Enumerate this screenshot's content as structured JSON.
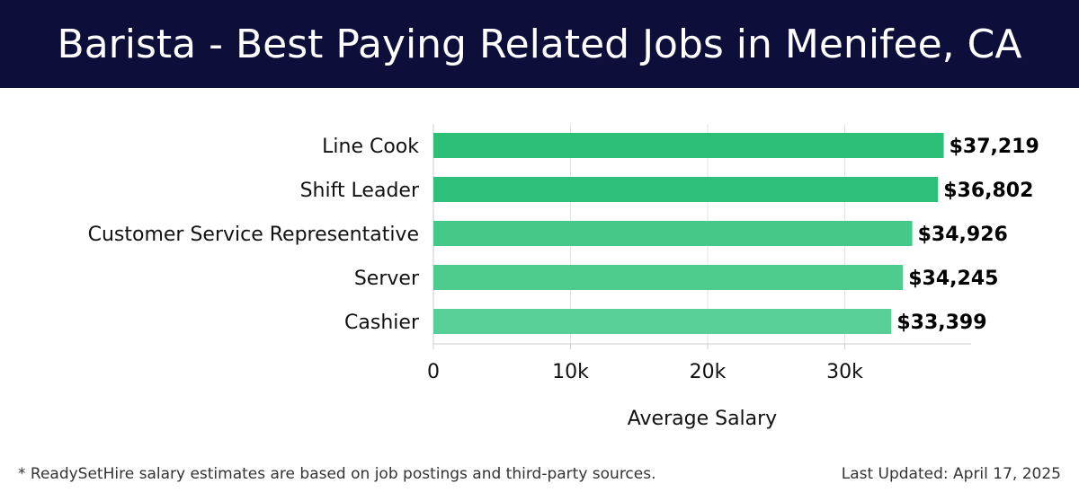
{
  "header": {
    "title": "Barista - Best Paying Related Jobs in Menifee, CA"
  },
  "chart_data": {
    "type": "bar",
    "orientation": "horizontal",
    "categories": [
      "Line Cook",
      "Shift Leader",
      "Customer Service Representative",
      "Server",
      "Cashier"
    ],
    "values": [
      37219,
      36802,
      34926,
      34245,
      33399
    ],
    "value_labels": [
      "$37,219",
      "$36,802",
      "$34,926",
      "$34,245",
      "$33,399"
    ],
    "xticks": [
      0,
      10000,
      20000,
      30000
    ],
    "xtick_labels": [
      "0",
      "10k",
      "20k",
      "30k"
    ],
    "xlim": [
      0,
      39000
    ],
    "xlabel": "Average Salary",
    "grid": true,
    "bar_colors": [
      "#2bbf78",
      "#2ec07b",
      "#45c98a",
      "#4ecb8f",
      "#58cf96"
    ]
  },
  "footer": {
    "note": "* ReadySetHire salary estimates are based on job postings and third-party sources.",
    "updated": "Last Updated: April 17, 2025"
  }
}
